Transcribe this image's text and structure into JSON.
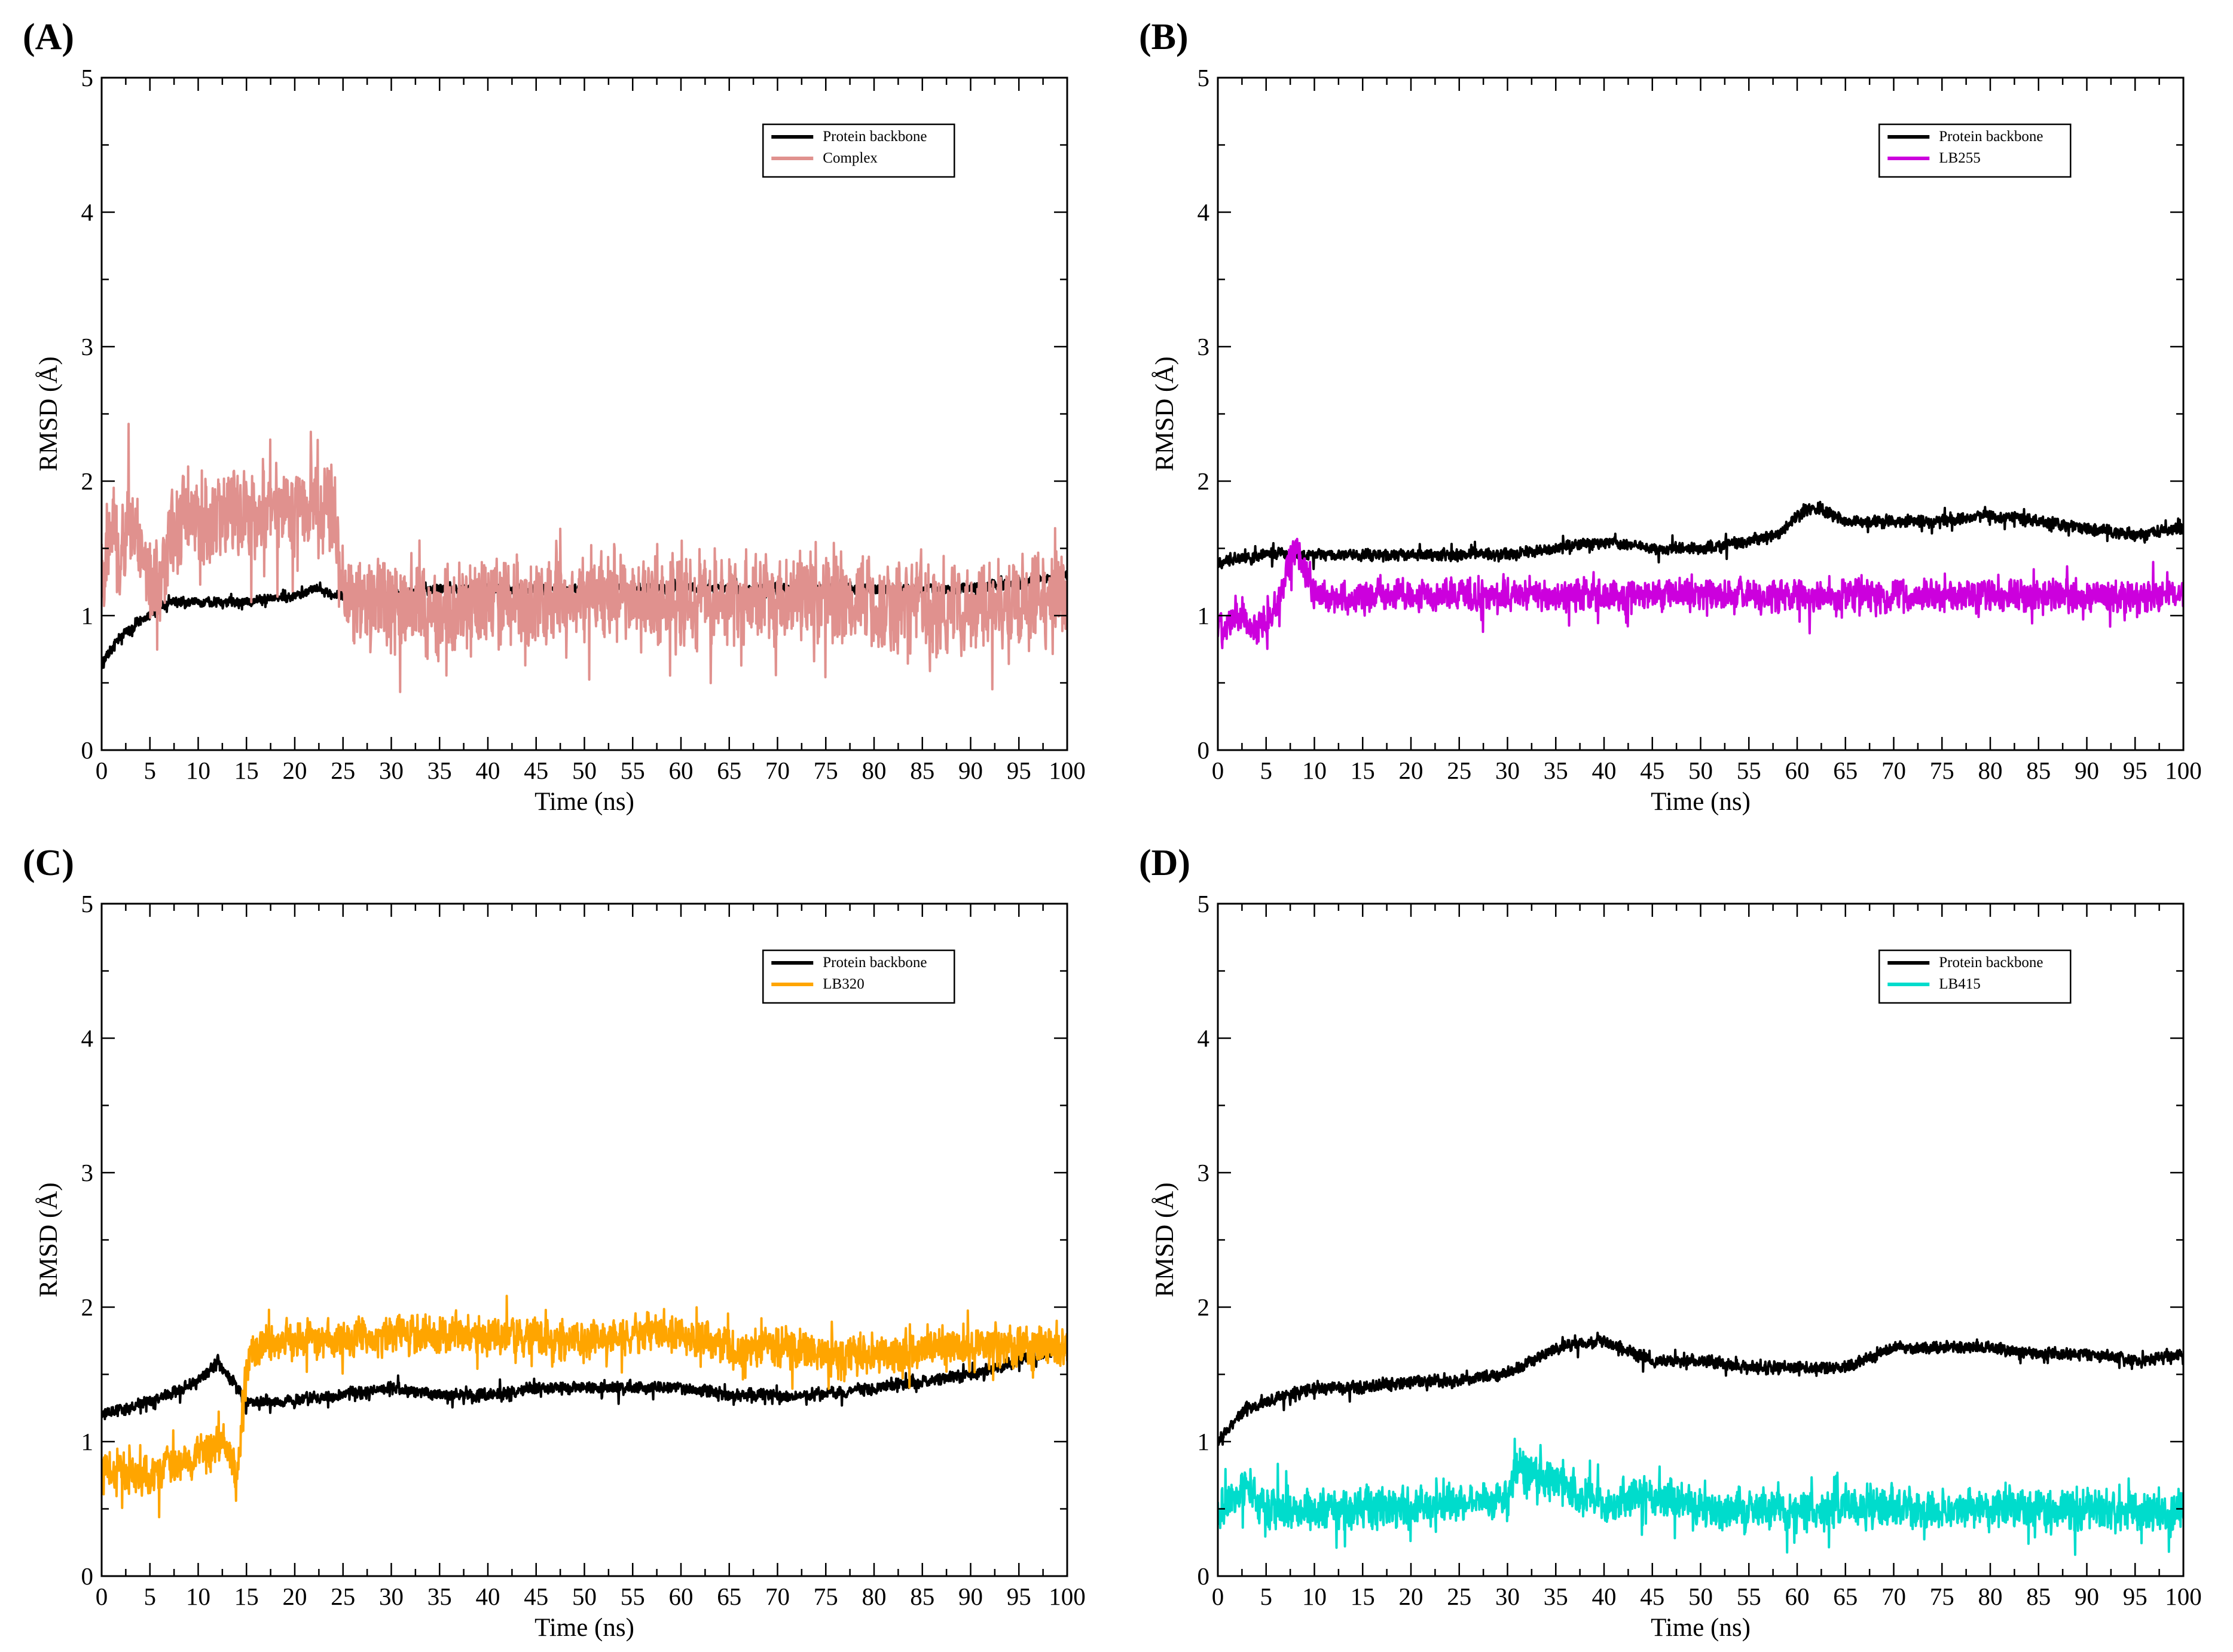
{
  "chart_data": [
    {
      "panel_label": "(A)",
      "type": "line",
      "xlabel": "Time (ns)",
      "ylabel": "RMSD (Å)",
      "xlim": [
        0,
        100
      ],
      "ylim": [
        0,
        5
      ],
      "xticks": [
        "0",
        "5",
        "10",
        "15",
        "20",
        "25",
        "30",
        "35",
        "40",
        "45",
        "50",
        "55",
        "60",
        "65",
        "70",
        "75",
        "80",
        "85",
        "90",
        "95",
        "100"
      ],
      "yticks": [
        "0",
        "1",
        "2",
        "3",
        "4",
        "5"
      ],
      "legend_position": "top-right",
      "series": [
        {
          "name": "Protein backbone",
          "color": "#000000",
          "noise": 0.05,
          "x": [
            0,
            2,
            5,
            7,
            10,
            15,
            20,
            22,
            24,
            25,
            30,
            35,
            40,
            45,
            50,
            55,
            60,
            65,
            70,
            75,
            80,
            85,
            90,
            95,
            100
          ],
          "y": [
            0.65,
            0.85,
            1.0,
            1.1,
            1.1,
            1.1,
            1.15,
            1.2,
            1.15,
            1.15,
            1.15,
            1.2,
            1.2,
            1.2,
            1.2,
            1.2,
            1.2,
            1.2,
            1.2,
            1.2,
            1.2,
            1.2,
            1.2,
            1.25,
            1.3
          ]
        },
        {
          "name": "Complex",
          "color": "#e0918e",
          "noise": 0.45,
          "x": [
            0,
            1,
            2,
            3,
            4,
            5,
            6,
            7,
            10,
            15,
            20,
            22,
            24,
            25,
            30,
            35,
            40,
            45,
            50,
            55,
            60,
            65,
            70,
            75,
            80,
            85,
            90,
            95,
            100
          ],
          "y": [
            1.4,
            1.6,
            1.4,
            1.7,
            1.5,
            1.3,
            1.2,
            1.65,
            1.72,
            1.75,
            1.78,
            1.8,
            1.75,
            1.15,
            1.1,
            1.05,
            1.1,
            1.15,
            1.15,
            1.1,
            1.1,
            1.1,
            1.1,
            1.15,
            1.1,
            1.1,
            1.05,
            1.1,
            1.2
          ]
        }
      ]
    },
    {
      "panel_label": "(B)",
      "type": "line",
      "xlabel": "Time (ns)",
      "ylabel": "RMSD (Å)",
      "xlim": [
        0,
        100
      ],
      "ylim": [
        0,
        5
      ],
      "xticks": [
        "0",
        "5",
        "10",
        "15",
        "20",
        "25",
        "30",
        "35",
        "40",
        "45",
        "50",
        "55",
        "60",
        "65",
        "70",
        "75",
        "80",
        "85",
        "90",
        "95",
        "100"
      ],
      "yticks": [
        "0",
        "1",
        "2",
        "3",
        "4",
        "5"
      ],
      "legend_position": "top-right",
      "series": [
        {
          "name": "Protein backbone",
          "color": "#000000",
          "noise": 0.06,
          "x": [
            0,
            5,
            10,
            15,
            20,
            25,
            30,
            35,
            40,
            45,
            50,
            55,
            58,
            60,
            62,
            65,
            70,
            75,
            80,
            85,
            90,
            95,
            100
          ],
          "y": [
            1.4,
            1.45,
            1.45,
            1.45,
            1.45,
            1.45,
            1.45,
            1.5,
            1.55,
            1.5,
            1.5,
            1.55,
            1.6,
            1.75,
            1.8,
            1.7,
            1.7,
            1.7,
            1.75,
            1.7,
            1.65,
            1.6,
            1.65
          ]
        },
        {
          "name": "LB255",
          "color": "#cc00dd",
          "noise": 0.16,
          "x": [
            0,
            2,
            4,
            6,
            7,
            8,
            9,
            10,
            20,
            30,
            40,
            50,
            60,
            70,
            80,
            90,
            100
          ],
          "y": [
            0.9,
            1.0,
            0.9,
            1.0,
            1.3,
            1.5,
            1.35,
            1.15,
            1.15,
            1.15,
            1.15,
            1.15,
            1.15,
            1.15,
            1.15,
            1.15,
            1.15
          ]
        }
      ]
    },
    {
      "panel_label": "(C)",
      "type": "line",
      "xlabel": "Time (ns)",
      "ylabel": "RMSD (Å)",
      "xlim": [
        0,
        100
      ],
      "ylim": [
        0,
        5
      ],
      "xticks": [
        "0",
        "5",
        "10",
        "15",
        "20",
        "25",
        "30",
        "35",
        "40",
        "45",
        "50",
        "55",
        "60",
        "65",
        "70",
        "75",
        "80",
        "85",
        "90",
        "95",
        "100"
      ],
      "yticks": [
        "0",
        "1",
        "2",
        "3",
        "4",
        "5"
      ],
      "legend_position": "top-right",
      "series": [
        {
          "name": "Protein backbone",
          "color": "#000000",
          "noise": 0.06,
          "x": [
            0,
            5,
            10,
            12,
            15,
            20,
            25,
            30,
            35,
            40,
            45,
            50,
            55,
            60,
            65,
            70,
            75,
            80,
            85,
            90,
            95,
            100
          ],
          "y": [
            1.2,
            1.3,
            1.45,
            1.6,
            1.3,
            1.3,
            1.35,
            1.4,
            1.35,
            1.35,
            1.4,
            1.4,
            1.4,
            1.4,
            1.35,
            1.35,
            1.35,
            1.4,
            1.45,
            1.5,
            1.6,
            1.7
          ]
        },
        {
          "name": "LB320",
          "color": "#ffa500",
          "noise": 0.2,
          "x": [
            0,
            5,
            10,
            13,
            14,
            15,
            16,
            20,
            25,
            30,
            35,
            40,
            45,
            50,
            55,
            60,
            65,
            70,
            75,
            80,
            85,
            90,
            95,
            100
          ],
          "y": [
            0.8,
            0.75,
            0.9,
            1.0,
            0.7,
            1.6,
            1.7,
            1.75,
            1.75,
            1.8,
            1.8,
            1.8,
            1.75,
            1.75,
            1.8,
            1.8,
            1.7,
            1.7,
            1.65,
            1.65,
            1.7,
            1.7,
            1.7,
            1.7
          ]
        }
      ]
    },
    {
      "panel_label": "(D)",
      "type": "line",
      "xlabel": "Time (ns)",
      "ylabel": "RMSD (Å)",
      "xlim": [
        0,
        100
      ],
      "ylim": [
        0,
        5
      ],
      "xticks": [
        "0",
        "5",
        "10",
        "15",
        "20",
        "25",
        "30",
        "35",
        "40",
        "45",
        "50",
        "55",
        "60",
        "65",
        "70",
        "75",
        "80",
        "85",
        "90",
        "95",
        "100"
      ],
      "yticks": [
        "0",
        "1",
        "2",
        "3",
        "4",
        "5"
      ],
      "legend_position": "top-right",
      "series": [
        {
          "name": "Protein backbone",
          "color": "#000000",
          "noise": 0.06,
          "x": [
            0,
            3,
            5,
            10,
            15,
            20,
            25,
            30,
            35,
            40,
            45,
            50,
            55,
            60,
            65,
            70,
            75,
            80,
            85,
            90,
            95,
            100
          ],
          "y": [
            1.0,
            1.25,
            1.3,
            1.4,
            1.4,
            1.45,
            1.45,
            1.5,
            1.7,
            1.75,
            1.6,
            1.6,
            1.55,
            1.55,
            1.55,
            1.7,
            1.7,
            1.7,
            1.65,
            1.65,
            1.6,
            1.65
          ]
        },
        {
          "name": "LB415",
          "color": "#00dccc",
          "noise": 0.2,
          "x": [
            0,
            2,
            3,
            5,
            10,
            20,
            30,
            31,
            40,
            45,
            50,
            60,
            70,
            80,
            90,
            100
          ],
          "y": [
            0.45,
            0.6,
            0.7,
            0.5,
            0.5,
            0.5,
            0.55,
            0.8,
            0.55,
            0.6,
            0.5,
            0.5,
            0.5,
            0.5,
            0.5,
            0.45
          ]
        }
      ]
    }
  ]
}
